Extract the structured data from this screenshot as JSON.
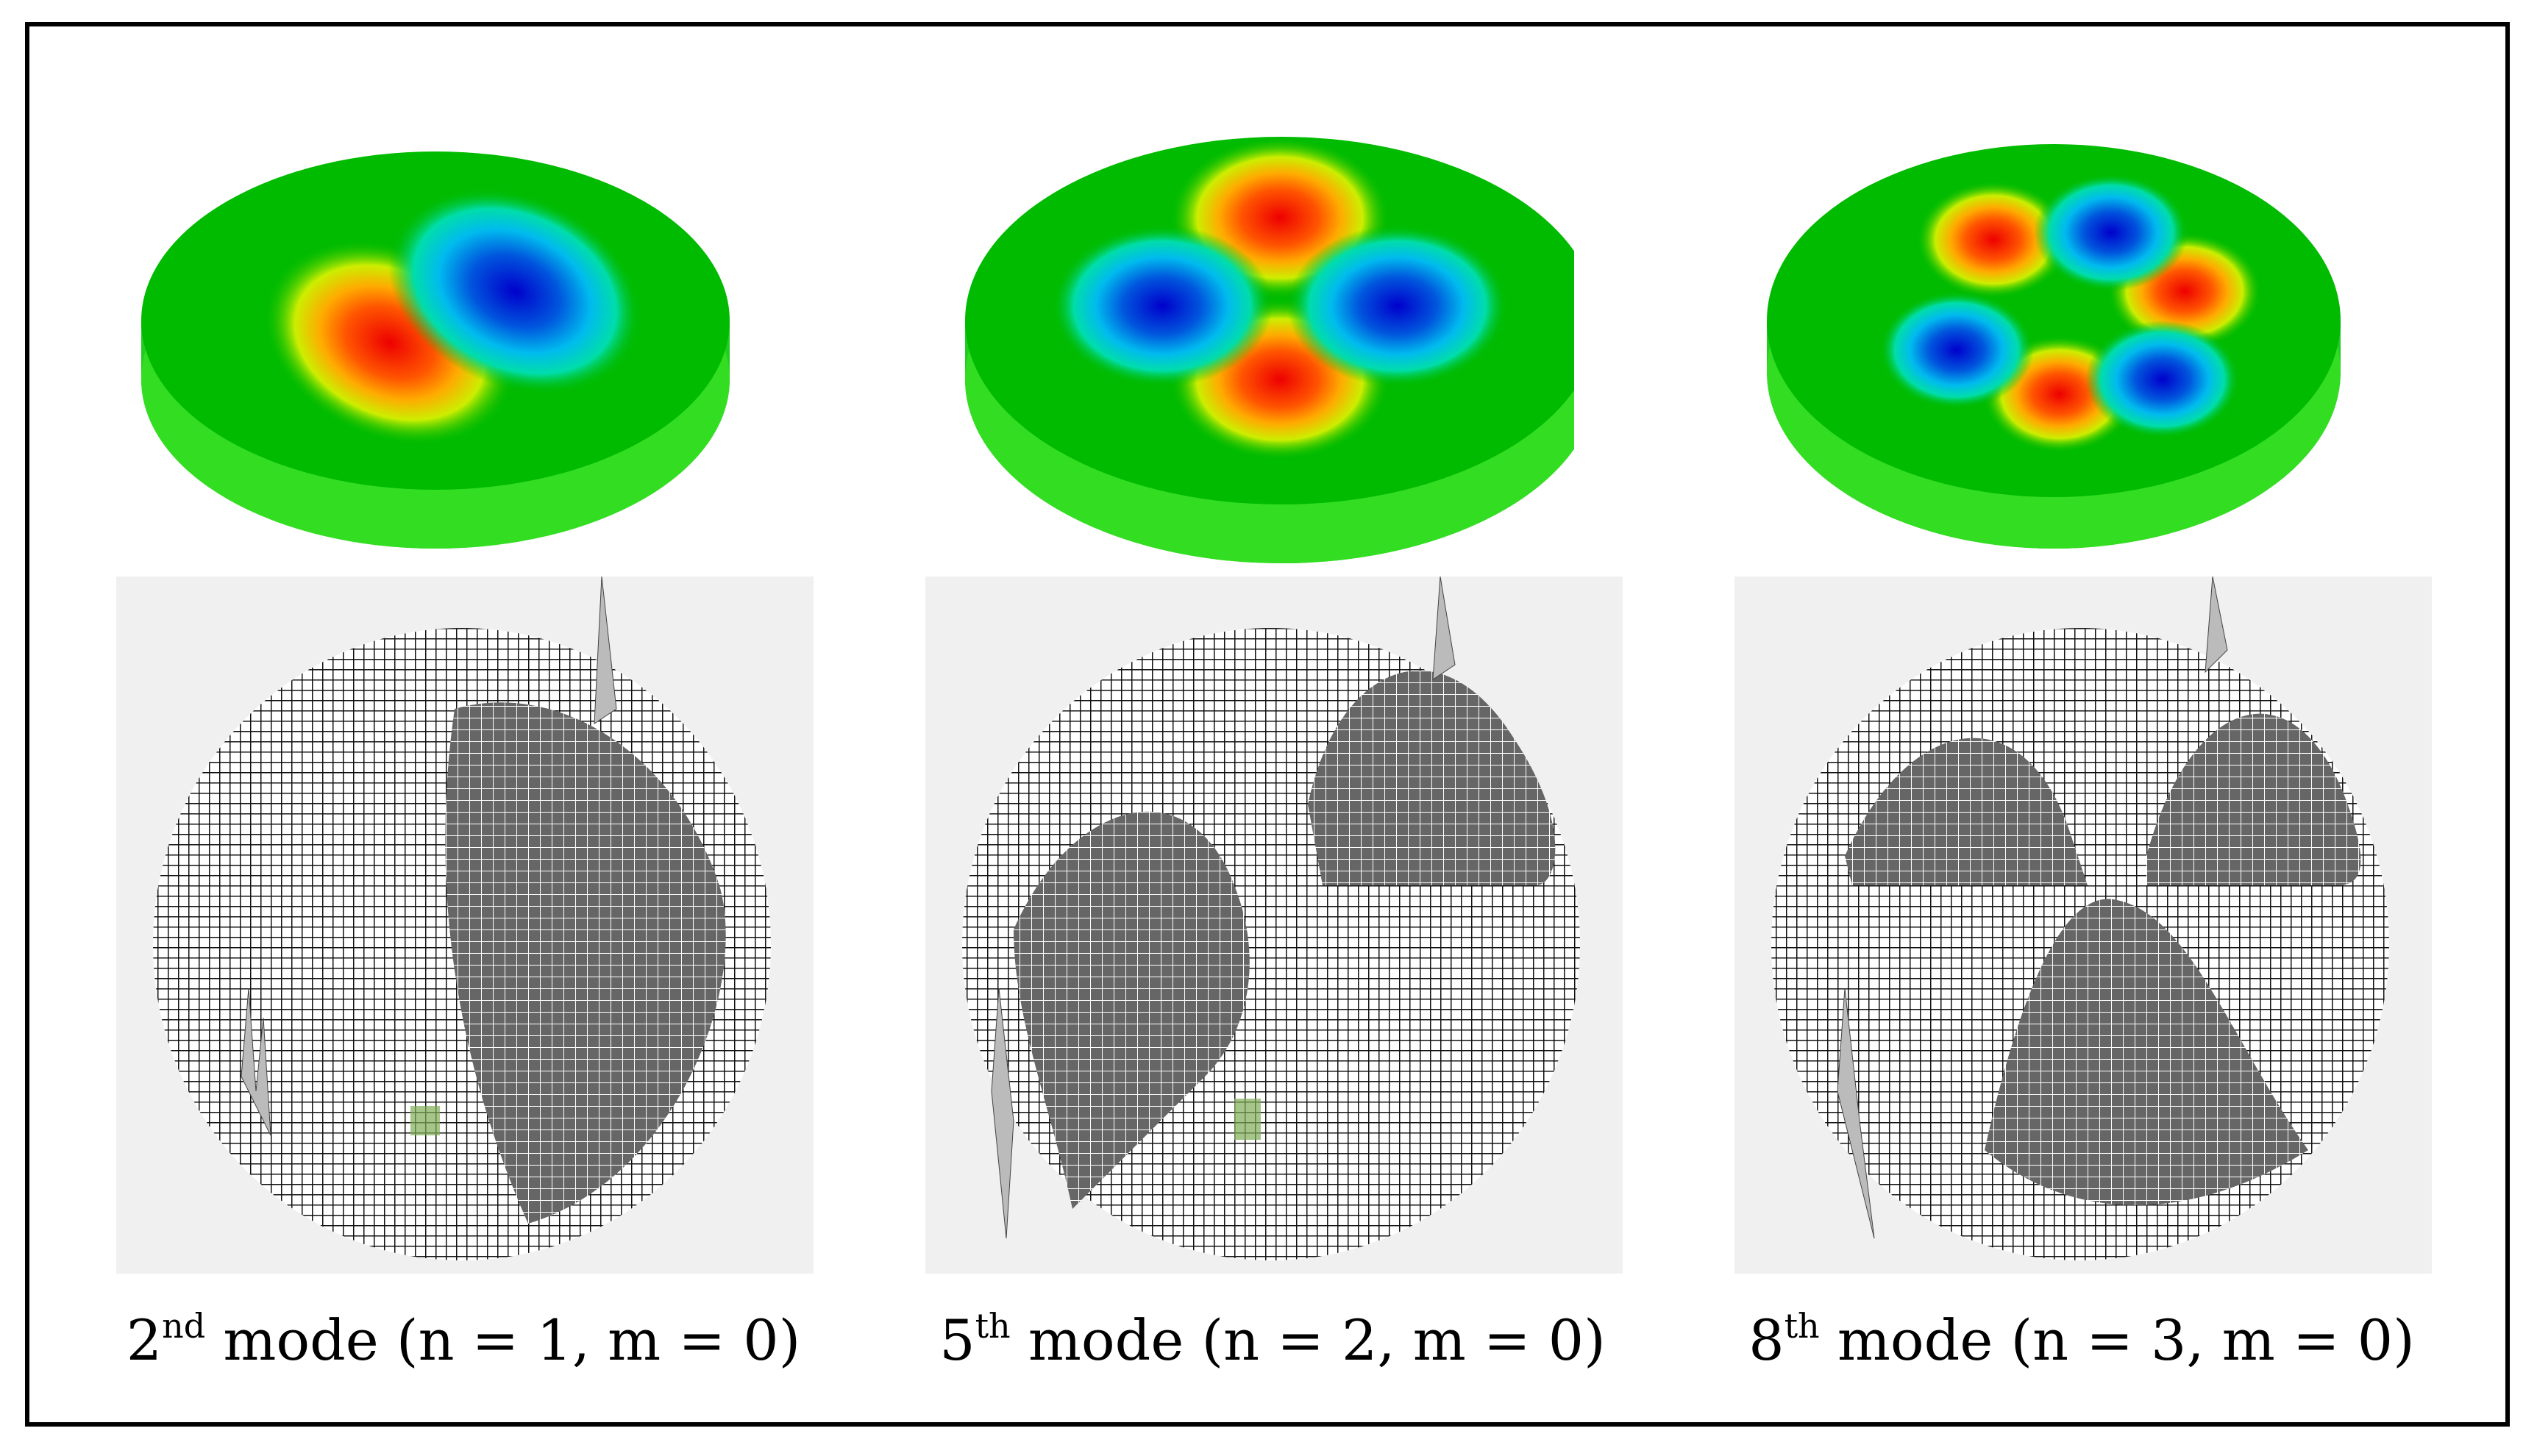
{
  "panels": [
    {
      "caption": {
        "ordinal": "2",
        "suffix": "nd",
        "rest": " mode (n = 1, m = 0)"
      },
      "n": 1,
      "m": 0
    },
    {
      "caption": {
        "ordinal": "5",
        "suffix": "th",
        "rest": " mode (n = 2, m = 0)"
      },
      "n": 2,
      "m": 0
    },
    {
      "caption": {
        "ordinal": "8",
        "suffix": "th",
        "rest": " mode (n = 3, m = 0)"
      },
      "n": 3,
      "m": 0
    }
  ],
  "colors": {
    "plate": "#00bb00",
    "plate_side": "#33dd22",
    "positive": "#ee0000",
    "negative": "#0000cc",
    "mesh_bg": "#f0f0f0"
  }
}
